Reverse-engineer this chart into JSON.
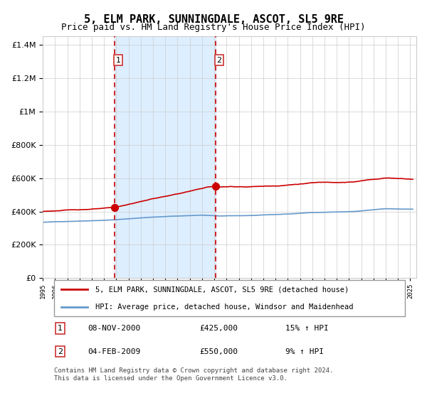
{
  "title": "5, ELM PARK, SUNNINGDALE, ASCOT, SL5 9RE",
  "subtitle": "Price paid vs. HM Land Registry's House Price Index (HPI)",
  "sale1_date": "08-NOV-2000",
  "sale1_price": 425000,
  "sale1_label": "1",
  "sale1_pct": "15%",
  "sale2_date": "04-FEB-2009",
  "sale2_price": 550000,
  "sale2_label": "2",
  "sale2_pct": "9%",
  "legend_red": "5, ELM PARK, SUNNINGDALE, ASCOT, SL5 9RE (detached house)",
  "legend_blue": "HPI: Average price, detached house, Windsor and Maidenhead",
  "table_row1": [
    "1",
    "08-NOV-2000",
    "£425,000",
    "15% ↑ HPI"
  ],
  "table_row2": [
    "2",
    "04-FEB-2009",
    "£550,000",
    "9% ↑ HPI"
  ],
  "footer": "Contains HM Land Registry data © Crown copyright and database right 2024.\nThis data is licensed under the Open Government Licence v3.0.",
  "sale1_x": 2000.856,
  "sale2_x": 2009.09,
  "shading_start": 2000.856,
  "shading_end": 2009.09,
  "ylim": [
    0,
    1450000
  ],
  "xlim_start": 1995.0,
  "xlim_end": 2025.5,
  "red_color": "#cc0000",
  "blue_color": "#6699cc",
  "shade_color": "#ddeeff",
  "grid_color": "#cccccc",
  "background_color": "#ffffff"
}
